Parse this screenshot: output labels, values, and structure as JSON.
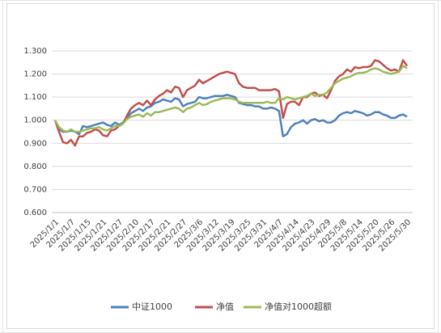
{
  "chart_data": {
    "type": "line",
    "categories": [
      "2025/1/1",
      null,
      null,
      null,
      "2025/1/7",
      null,
      null,
      null,
      "2025/1/15",
      null,
      null,
      null,
      "2025/1/21",
      null,
      null,
      null,
      "2025/1/27",
      null,
      null,
      null,
      "2025/2/10",
      null,
      null,
      null,
      "2025/2/17",
      null,
      null,
      null,
      "2025/2/21",
      null,
      null,
      null,
      "2025/2/27",
      null,
      null,
      null,
      "2025/3/6",
      null,
      null,
      null,
      "2025/3/12",
      null,
      null,
      null,
      "2025/3/19",
      null,
      null,
      null,
      "2025/3/25",
      null,
      null,
      null,
      "2025/3/31",
      null,
      null,
      null,
      "2025/4/7",
      null,
      null,
      null,
      "2025/4/14",
      null,
      null,
      null,
      "2025/4/23",
      null,
      null,
      null,
      "2025/4/29",
      null,
      null,
      null,
      "2025/5/8",
      null,
      null,
      null,
      "2025/5/14",
      null,
      null,
      null,
      "2025/5/20",
      null,
      null,
      null,
      "2025/5/26",
      null,
      null,
      null,
      "2025/5/30"
    ],
    "series": [
      {
        "name": "中证1000",
        "color": "#4f81bd",
        "values": [
          1.0,
          0.96,
          0.95,
          0.95,
          0.955,
          0.95,
          0.94,
          0.975,
          0.97,
          0.975,
          0.98,
          0.985,
          0.99,
          0.98,
          0.975,
          0.99,
          0.98,
          0.99,
          1.01,
          1.03,
          1.04,
          1.05,
          1.04,
          1.055,
          1.06,
          1.075,
          1.08,
          1.09,
          1.085,
          1.08,
          1.095,
          1.09,
          1.06,
          1.07,
          1.075,
          1.08,
          1.1,
          1.095,
          1.095,
          1.1,
          1.105,
          1.105,
          1.105,
          1.11,
          1.105,
          1.1,
          1.075,
          1.07,
          1.065,
          1.065,
          1.06,
          1.06,
          1.05,
          1.05,
          1.055,
          1.05,
          1.04,
          0.93,
          0.94,
          0.97,
          0.985,
          0.99,
          1.0,
          0.985,
          1.0,
          1.005,
          0.995,
          1.0,
          0.99,
          0.99,
          1.0,
          1.02,
          1.03,
          1.035,
          1.03,
          1.04,
          1.035,
          1.03,
          1.02,
          1.025,
          1.035,
          1.035,
          1.025,
          1.02,
          1.01,
          1.01,
          1.02,
          1.025,
          1.015
        ]
      },
      {
        "name": "净值",
        "color": "#c0504d",
        "values": [
          1.0,
          0.95,
          0.905,
          0.9,
          0.915,
          0.89,
          0.93,
          0.93,
          0.945,
          0.95,
          0.96,
          0.955,
          0.935,
          0.93,
          0.955,
          0.96,
          0.975,
          0.985,
          1.02,
          1.05,
          1.065,
          1.075,
          1.065,
          1.085,
          1.065,
          1.09,
          1.105,
          1.115,
          1.13,
          1.12,
          1.145,
          1.14,
          1.1,
          1.13,
          1.14,
          1.15,
          1.175,
          1.16,
          1.17,
          1.18,
          1.19,
          1.2,
          1.205,
          1.21,
          1.205,
          1.2,
          1.16,
          1.145,
          1.14,
          1.14,
          1.14,
          1.13,
          1.13,
          1.13,
          1.13,
          1.135,
          1.125,
          1.01,
          1.07,
          1.08,
          1.08,
          1.065,
          1.1,
          1.1,
          1.115,
          1.12,
          1.105,
          1.11,
          1.095,
          1.13,
          1.17,
          1.19,
          1.2,
          1.22,
          1.21,
          1.23,
          1.225,
          1.23,
          1.23,
          1.235,
          1.26,
          1.255,
          1.24,
          1.225,
          1.215,
          1.22,
          1.21,
          1.26,
          1.235
        ]
      },
      {
        "name": "净值对1000超额",
        "color": "#9bbb59",
        "values": [
          1.0,
          0.97,
          0.955,
          0.95,
          0.96,
          0.95,
          0.95,
          0.955,
          0.96,
          0.965,
          0.965,
          0.97,
          0.96,
          0.955,
          0.965,
          0.975,
          0.975,
          0.985,
          1.005,
          1.015,
          1.02,
          1.025,
          1.015,
          1.03,
          1.02,
          1.035,
          1.035,
          1.04,
          1.045,
          1.05,
          1.055,
          1.05,
          1.035,
          1.05,
          1.055,
          1.065,
          1.075,
          1.065,
          1.07,
          1.08,
          1.085,
          1.09,
          1.095,
          1.095,
          1.095,
          1.09,
          1.08,
          1.075,
          1.075,
          1.075,
          1.075,
          1.075,
          1.075,
          1.08,
          1.075,
          1.075,
          1.095,
          1.09,
          1.1,
          1.095,
          1.09,
          1.095,
          1.1,
          1.105,
          1.115,
          1.105,
          1.11,
          1.11,
          1.12,
          1.14,
          1.16,
          1.17,
          1.18,
          1.185,
          1.19,
          1.2,
          1.205,
          1.205,
          1.21,
          1.22,
          1.225,
          1.22,
          1.21,
          1.205,
          1.2,
          1.205,
          1.21,
          1.235,
          1.225
        ]
      }
    ],
    "ylim": [
      0.6,
      1.3
    ],
    "yticks": [
      {
        "value": 0.6,
        "label": "0.600"
      },
      {
        "value": 0.7,
        "label": "0.700"
      },
      {
        "value": 0.8,
        "label": "0.800"
      },
      {
        "value": 0.9,
        "label": "0.900"
      },
      {
        "value": 1.0,
        "label": "1.000"
      },
      {
        "value": 1.1,
        "label": "1.100"
      },
      {
        "value": 1.2,
        "label": "1.200"
      },
      {
        "value": 1.3,
        "label": "1.300"
      }
    ],
    "grid": true,
    "legend": "bottom"
  }
}
